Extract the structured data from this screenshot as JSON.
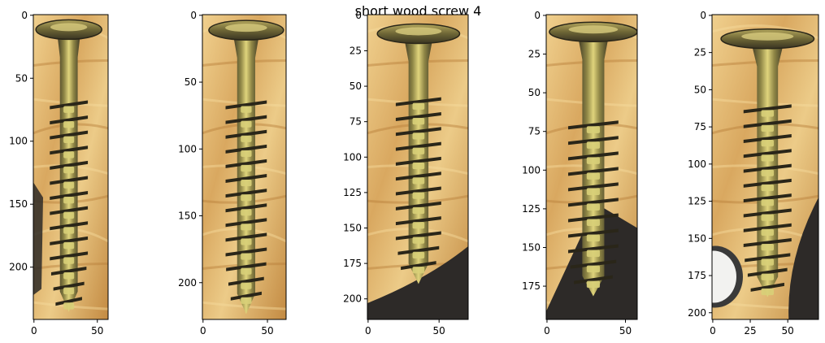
{
  "title": "short wood screw 4",
  "colors": {
    "wood_light": "#e8c27c",
    "wood_mid": "#c9924a",
    "wood_dark": "#9c6a2e",
    "screw_light": "#d8cf78",
    "screw_mid": "#8f8646",
    "screw_dark": "#3a3522",
    "thread_shadow": "#2a2619",
    "background_dark": "#2d2a28"
  },
  "panels": [
    {
      "name": "panel-1",
      "image_width": 59,
      "image_height": 242,
      "xticks": [
        0,
        50
      ],
      "yticks": [
        0,
        50,
        100,
        150,
        200
      ],
      "screw": {
        "cx": 28,
        "head_y": 8,
        "tip_y": 236,
        "head_w": 52,
        "shank_w": 14,
        "thread_w": 30,
        "thread_start": 70,
        "thread_pitch": 12
      },
      "dark_region": "left-middle"
    },
    {
      "name": "panel-2",
      "image_width": 65,
      "image_height": 228,
      "xticks": [
        0,
        50
      ],
      "yticks": [
        0,
        50,
        100,
        150,
        200
      ],
      "screw": {
        "cx": 34,
        "head_y": 8,
        "tip_y": 224,
        "head_w": 58,
        "shank_w": 14,
        "thread_w": 32,
        "thread_start": 66,
        "thread_pitch": 11
      },
      "dark_region": "none"
    },
    {
      "name": "panel-3",
      "image_width": 71,
      "image_height": 215,
      "xticks": [
        0,
        50
      ],
      "yticks": [
        0,
        25,
        50,
        75,
        100,
        125,
        150,
        175,
        200
      ],
      "screw": {
        "cx": 36,
        "head_y": 10,
        "tip_y": 190,
        "head_w": 58,
        "shank_w": 14,
        "thread_w": 32,
        "thread_start": 60,
        "thread_pitch": 10.5
      },
      "dark_region": "bottom-right"
    },
    {
      "name": "panel-4",
      "image_width": 58,
      "image_height": 197,
      "xticks": [
        0,
        50
      ],
      "yticks": [
        0,
        25,
        50,
        75,
        100,
        125,
        150,
        175
      ],
      "screw": {
        "cx": 30,
        "head_y": 8,
        "tip_y": 182,
        "head_w": 56,
        "shank_w": 14,
        "thread_w": 32,
        "thread_start": 70,
        "thread_pitch": 10
      },
      "dark_region": "bottom-right-large"
    },
    {
      "name": "panel-5",
      "image_width": 71,
      "image_height": 205,
      "xticks": [
        0,
        25,
        50
      ],
      "yticks": [
        0,
        25,
        50,
        75,
        100,
        125,
        150,
        175,
        200
      ],
      "screw": {
        "cx": 37,
        "head_y": 13,
        "tip_y": 190,
        "head_w": 62,
        "shank_w": 14,
        "thread_w": 32,
        "thread_start": 62,
        "thread_pitch": 10
      },
      "dark_region": "bottom-left-white-right-dark"
    }
  ]
}
